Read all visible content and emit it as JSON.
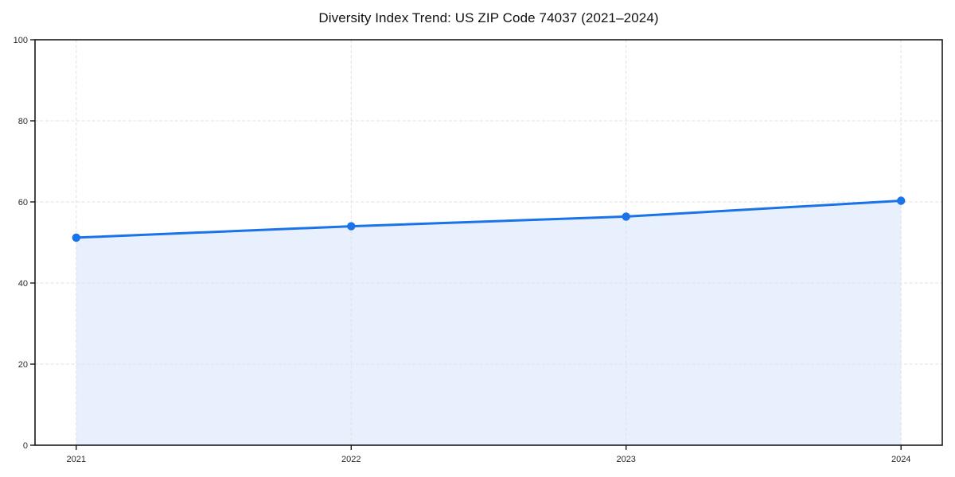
{
  "chart_data": {
    "type": "area",
    "title": "Diversity Index Trend: US ZIP Code 74037 (2021–2024)",
    "series_name": "Diversity Index",
    "x": [
      2021,
      2022,
      2023,
      2024
    ],
    "values": [
      51.2,
      54.0,
      56.4,
      60.3
    ],
    "xlabel": "",
    "ylabel": "",
    "xticks": [
      "2021",
      "2022",
      "2023",
      "2024"
    ],
    "yticks": [
      0,
      20,
      40,
      60,
      80,
      100
    ],
    "ylim": [
      0,
      100
    ],
    "x_margin_frac": 0.05,
    "grid": "dashed-both-axes",
    "legend": "none",
    "marker": "circle",
    "colors": {
      "line": "#1a73e8",
      "marker": "#1a73e8",
      "fill": "#e8f0fe",
      "grid": "#e0e0e0",
      "spine": "#1a1a1a",
      "tick_label": "#2b2b2b",
      "background": "#ffffff"
    }
  }
}
